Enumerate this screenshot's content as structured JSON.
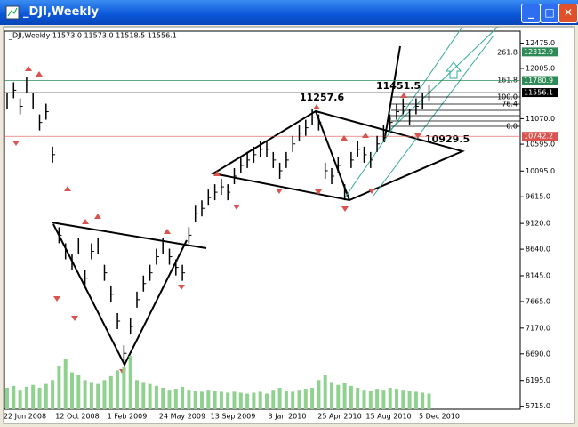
{
  "window": {
    "title": "_DJI,Weekly"
  },
  "chart_data": {
    "type": "price-bars",
    "header": "_DJI,Weekly  11573.0 11573.0 11518.5 11556.1",
    "closes": [
      11400,
      11600,
      11300,
      11700,
      11400,
      11000,
      11200,
      10400,
      8900,
      8600,
      8400,
      8700,
      8100,
      8600,
      8700,
      8200,
      7800,
      7300,
      6700,
      7200,
      7700,
      8000,
      8200,
      8500,
      8700,
      8500,
      8300,
      8200,
      8900,
      9300,
      9400,
      9600,
      9700,
      9800,
      9700,
      10000,
      10200,
      10300,
      10400,
      10500,
      10500,
      10300,
      10100,
      10300,
      10600,
      10800,
      10900,
      11100,
      11000,
      10100,
      10000,
      10200,
      9700,
      10300,
      10500,
      10400,
      10300,
      10600,
      10800,
      11000,
      11200,
      11300,
      11100,
      11300,
      11400,
      11550
    ],
    "volumes": [
      22,
      24,
      20,
      23,
      25,
      22,
      26,
      30,
      45,
      52,
      38,
      35,
      30,
      28,
      26,
      30,
      34,
      40,
      44,
      55,
      30,
      28,
      26,
      24,
      22,
      20,
      21,
      23,
      20,
      19,
      18,
      20,
      19,
      18,
      17,
      18,
      17,
      16,
      17,
      18,
      16,
      20,
      22,
      19,
      18,
      20,
      21,
      22,
      30,
      35,
      28,
      25,
      27,
      24,
      22,
      20,
      19,
      21,
      20,
      22,
      21,
      20,
      19,
      18,
      17,
      16
    ],
    "ylim": [
      5660,
      12700
    ],
    "yticks": [
      {
        "value": 12475,
        "label": "12475.0"
      },
      {
        "value": 12005,
        "label": "12005.0"
      },
      {
        "value": 11070,
        "label": "11070.0"
      },
      {
        "value": 10595,
        "label": "10595.0"
      },
      {
        "value": 10095,
        "label": "10095.0"
      },
      {
        "value": 9615,
        "label": "9615.0"
      },
      {
        "value": 9120,
        "label": "9120.0"
      },
      {
        "value": 8640,
        "label": "8640.0"
      },
      {
        "value": 8145,
        "label": "8145.0"
      },
      {
        "value": 7665,
        "label": "7665.0"
      },
      {
        "value": 7170,
        "label": "7170.0"
      },
      {
        "value": 6690,
        "label": "6690.0"
      },
      {
        "value": 6195,
        "label": "6195.0"
      },
      {
        "value": 5715,
        "label": "5715.0"
      }
    ],
    "levels": [
      {
        "value": 12312.9,
        "label": "12312.9",
        "color": "#2e8b57"
      },
      {
        "value": 11780.9,
        "label": "11780.9",
        "color": "#2e8b57"
      },
      {
        "value": 11556.1,
        "label": "11556.1",
        "color": "#000000"
      },
      {
        "value": 10742.2,
        "label": "10742.2",
        "color": "#d9534f"
      }
    ],
    "dates": [
      "22 Jun 2008",
      "12 Oct 2008",
      "1 Feb 2009",
      "24 May 2009",
      "13 Sep 2009",
      "3 Jan 2010",
      "25 Apr 2010",
      "15 Aug 2010",
      "5 Dec 2010"
    ],
    "annotations": [
      "11257.6",
      "11451.5",
      "10929.5"
    ],
    "fib_labels": [
      "261.8",
      "161.8",
      "100.0",
      "76.4",
      "0.0"
    ],
    "bar_color": "#000000",
    "volume_color": "#8fd18f"
  }
}
